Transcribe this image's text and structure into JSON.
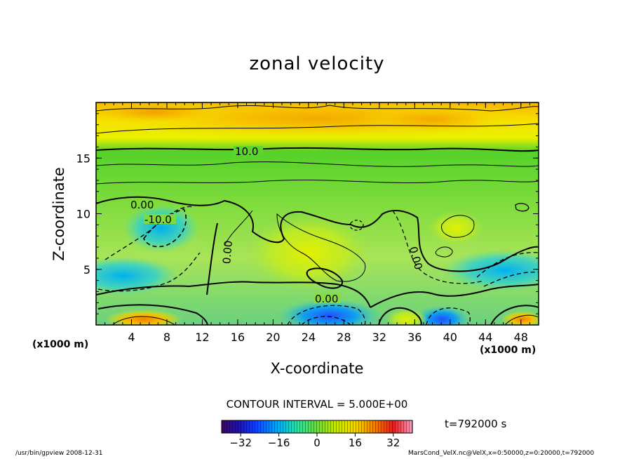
{
  "chart_data": {
    "type": "heatmap",
    "title": "zonal velocity",
    "xlabel": "X-coordinate",
    "ylabel": "Z-coordinate",
    "x_unit_label": "(x1000 m)",
    "x_ticks": [
      4,
      8,
      12,
      16,
      20,
      24,
      28,
      32,
      36,
      40,
      44,
      48
    ],
    "y_ticks": [
      5,
      10,
      15
    ],
    "xlim": [
      0,
      50
    ],
    "ylim": [
      0,
      20
    ],
    "contour_interval_text": "CONTOUR INTERVAL = 5.000E+00",
    "contour_labels": [
      {
        "text": "10.0",
        "x": 17.5,
        "z": 15.2
      },
      {
        "text": "0.00",
        "x": 5.5,
        "z": 10.6
      },
      {
        "text": "-10.0",
        "x": 7.0,
        "z": 9.7
      },
      {
        "text": "0.00",
        "x": 13.8,
        "z": 7.0
      },
      {
        "text": "0.00",
        "x": 36.3,
        "z": 6.5
      },
      {
        "text": "0.00",
        "x": 26.0,
        "z": 2.4
      }
    ],
    "colorbar": {
      "ticks": [
        -32,
        -16,
        0,
        16,
        32
      ],
      "range": [
        -40,
        40
      ]
    },
    "time_label": "t=792000 s"
  },
  "footer": {
    "left": "/usr/bin/gpview   2008-12-31",
    "right": "MarsCond_VelX.nc@VelX,x=0:50000,z=0:20000,t=792000"
  },
  "colors": {
    "high": "#f4a300",
    "mid": "#9ee040",
    "low": "#00b8e8",
    "contour": "#000000"
  }
}
